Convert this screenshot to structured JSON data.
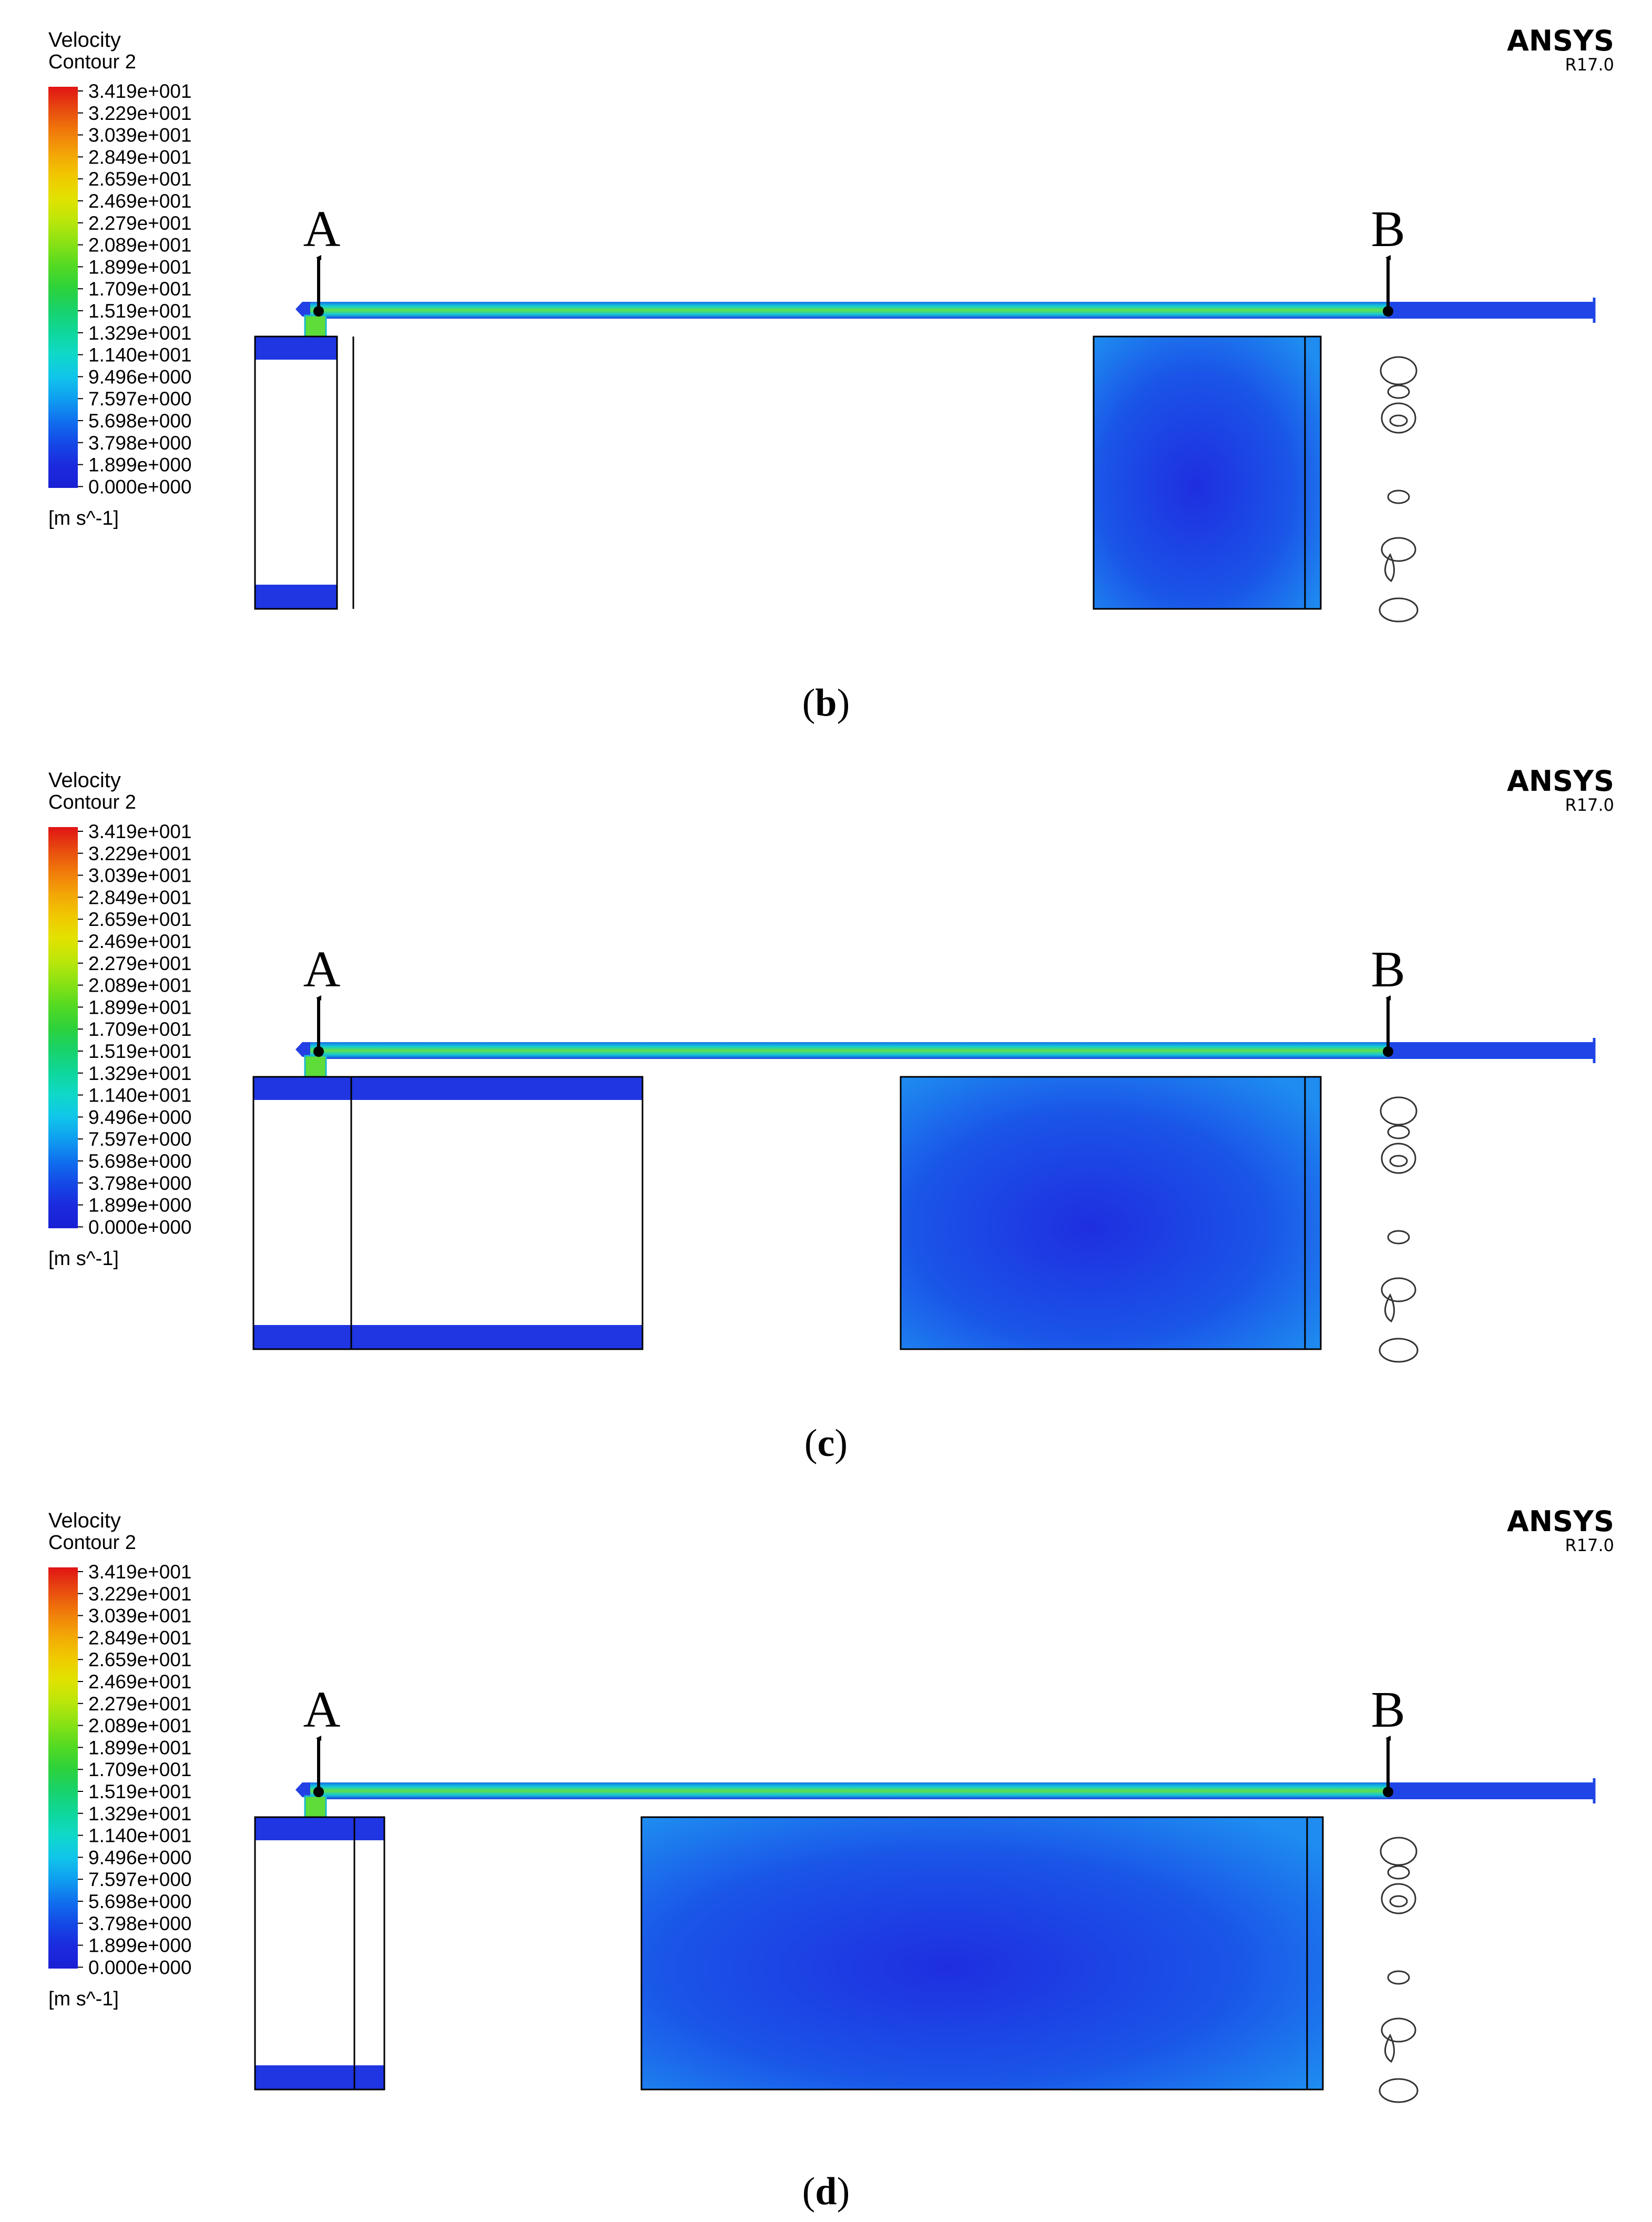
{
  "legend": {
    "title_line1": "Velocity",
    "title_line2": "Contour 2",
    "unit": "[m s^-1]",
    "ticks": [
      "3.419e+001",
      "3.229e+001",
      "3.039e+001",
      "2.849e+001",
      "2.659e+001",
      "2.469e+001",
      "2.279e+001",
      "2.089e+001",
      "1.899e+001",
      "1.709e+001",
      "1.519e+001",
      "1.329e+001",
      "1.140e+001",
      "9.496e+000",
      "7.597e+000",
      "5.698e+000",
      "3.798e+000",
      "1.899e+000",
      "0.000e+000"
    ],
    "colors": [
      "#e01414",
      "#e84a10",
      "#f07a0a",
      "#f3a507",
      "#f0c800",
      "#e2e200",
      "#bce60a",
      "#8ae214",
      "#55da22",
      "#2ed23a",
      "#18d26a",
      "#0fd79a",
      "#0fd8c8",
      "#10c6ea",
      "#0f9ef0",
      "#1070ee",
      "#1448e6",
      "#1b2ade",
      "#1a20d4"
    ]
  },
  "brand": {
    "name": "ANSYS",
    "version": "R17.0"
  },
  "markers": {
    "a": "A",
    "b": "B"
  },
  "panels": [
    {
      "caption_open": "(",
      "caption_letter": "b",
      "caption_close": ")"
    },
    {
      "caption_open": "(",
      "caption_letter": "c",
      "caption_close": ")"
    },
    {
      "caption_open": "(",
      "caption_letter": "d",
      "caption_close": ")"
    }
  ]
}
